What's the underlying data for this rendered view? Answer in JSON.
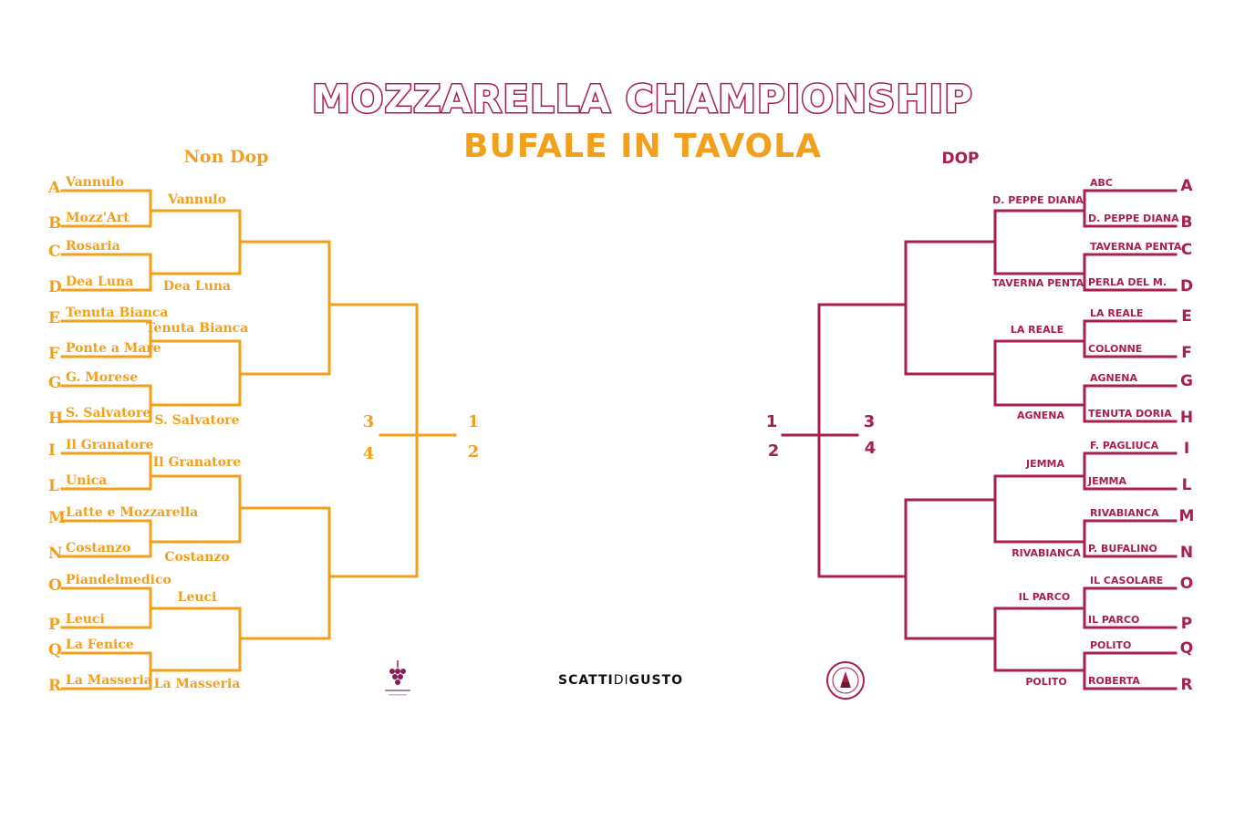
{
  "header": {
    "title": "MOZZARELLA CHAMPIONSHIP",
    "subtitle": "BUFALE IN TAVOLA"
  },
  "colors": {
    "non_dop": "#f29f1b",
    "dop": "#a81e50"
  },
  "non_dop": {
    "heading": "Non Dop",
    "letters": [
      "A",
      "B",
      "C",
      "D",
      "E",
      "F",
      "G",
      "H",
      "I",
      "L",
      "M",
      "N",
      "O",
      "P",
      "Q",
      "R"
    ],
    "round1": [
      "Vannulo",
      "Mozz'Art",
      "Rosaria",
      "Dea Luna",
      "Tenuta Bianca",
      "Ponte a Mare",
      "G. Morese",
      "S. Salvatore",
      "Il Granatore",
      "Unica",
      "Latte e Mozzarella",
      "Costanzo",
      "Piandelmedico",
      "Leuci",
      "La Fenice",
      "La Masseria"
    ],
    "round2": [
      "Vannulo",
      "Dea Luna",
      "Tenuta Bianca",
      "S. Salvatore",
      "Il Granatore",
      "Costanzo",
      "Leuci",
      "La Masseria"
    ],
    "final_numbers": [
      "3",
      "4",
      "1",
      "2"
    ]
  },
  "dop": {
    "heading": "DOP",
    "letters": [
      "A",
      "B",
      "C",
      "D",
      "E",
      "F",
      "G",
      "H",
      "I",
      "L",
      "M",
      "N",
      "O",
      "P",
      "Q",
      "R"
    ],
    "round1": [
      "ABC",
      "D. PEPPE DIANA",
      "TAVERNA PENTA",
      "PERLA DEL M.",
      "LA REALE",
      "COLONNE",
      "AGNENA",
      "TENUTA DORIA",
      "F. PAGLIUCA",
      "JEMMA",
      "RIVABIANCA",
      "P. BUFALINO",
      "IL CASOLARE",
      "IL PARCO",
      "POLITO",
      "ROBERTA"
    ],
    "round2": [
      "D. PEPPE DIANA",
      "TAVERNA PENTA",
      "LA REALE",
      "AGNENA",
      "JEMMA",
      "RIVABIANCA",
      "IL PARCO",
      "POLITO"
    ],
    "final_numbers": [
      "1",
      "2",
      "3",
      "4"
    ]
  },
  "footer": {
    "logo_left": "grape-logo",
    "logo_center": {
      "part1": "SCATTI",
      "part2": "DI",
      "part3": "GUSTO"
    },
    "logo_right": "seal-logo"
  }
}
